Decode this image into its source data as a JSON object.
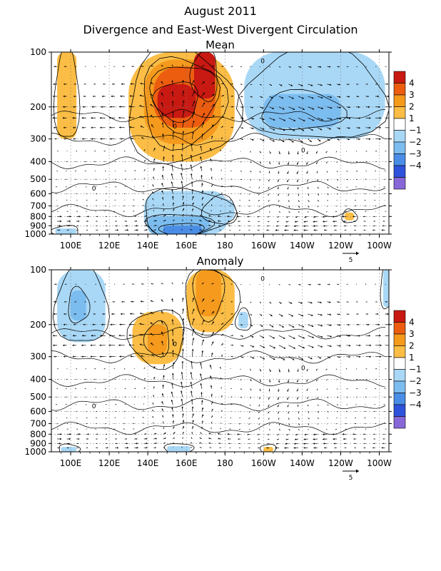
{
  "title": "August 2011",
  "subtitle": "Divergence and East-West Divergent Circulation",
  "colors": {
    "pos4": "#c81a12",
    "pos3": "#ec5d10",
    "pos2": "#f59a1d",
    "pos1": "#fbbd45",
    "neg1": "#a9d8f6",
    "neg2": "#7cbdf0",
    "neg3": "#4a8de6",
    "neg4": "#2f52dc",
    "neg5": "#8868d8",
    "contour": "#000000"
  },
  "colorbar": {
    "labels": [
      "4",
      "3",
      "2",
      "1",
      "−1",
      "−2",
      "−3",
      "−4"
    ]
  },
  "vector_reference": {
    "label": "5",
    "magnitude": 5
  },
  "chart_data": [
    {
      "type": "heatmap",
      "panel_title": "Mean",
      "x_ticks": [
        "100E",
        "120E",
        "140E",
        "160E",
        "180",
        "160W",
        "140W",
        "120W",
        "100W"
      ],
      "x_tick_lon": [
        100,
        120,
        140,
        160,
        180,
        200,
        220,
        240,
        260
      ],
      "xlim_lon": [
        90,
        265
      ],
      "y_ticks": [
        "100",
        "200",
        "300",
        "400",
        "500",
        "600",
        "700",
        "800",
        "900",
        "1000"
      ],
      "y_tick_values": [
        100,
        200,
        300,
        400,
        500,
        600,
        700,
        800,
        900,
        1000
      ],
      "ylim_hPa": [
        1000,
        100
      ],
      "y_scale": "log",
      "contour_zero_label": "0",
      "grid": "dotted",
      "shaded_regions": [
        {
          "level": 1,
          "lon": [
            93,
            103
          ],
          "p": [
            100,
            300
          ]
        },
        {
          "level": 1,
          "lon": [
            130,
            185
          ],
          "p": [
            100,
            400
          ]
        },
        {
          "level": 2,
          "lon": [
            138,
            178
          ],
          "p": [
            110,
            320
          ]
        },
        {
          "level": 3,
          "lon": [
            143,
            175
          ],
          "p": [
            120,
            260
          ]
        },
        {
          "level": 4,
          "lon": [
            145,
            165
          ],
          "p": [
            150,
            230
          ]
        },
        {
          "level": 4,
          "lon": [
            164,
            175
          ],
          "p": [
            100,
            180
          ]
        },
        {
          "level": -1,
          "lon": [
            190,
            263
          ],
          "p": [
            100,
            300
          ]
        },
        {
          "level": -2,
          "lon": [
            200,
            240
          ],
          "p": [
            170,
            260
          ]
        },
        {
          "level": -1,
          "lon": [
            138,
            182
          ],
          "p": [
            580,
            1000
          ]
        },
        {
          "level": -2,
          "lon": [
            140,
            172
          ],
          "p": [
            800,
            1000
          ]
        },
        {
          "level": -3,
          "lon": [
            148,
            168
          ],
          "p": [
            900,
            1000
          ]
        },
        {
          "level": -1,
          "lon": [
            92,
            103
          ],
          "p": [
            930,
            1000
          ]
        },
        {
          "level": -1,
          "lon": [
            170,
            185
          ],
          "p": [
            640,
            860
          ]
        },
        {
          "level": 1,
          "lon": [
            242,
            247
          ],
          "p": [
            760,
            840
          ]
        }
      ],
      "vector_field": {
        "updraft_center_lon": 158,
        "subsidence_center_lon": 215,
        "upper_outflow_p": [
          150,
          300
        ]
      }
    },
    {
      "type": "heatmap",
      "panel_title": "Anomaly",
      "x_ticks": [
        "100E",
        "120E",
        "140E",
        "160E",
        "180",
        "160W",
        "140W",
        "120W",
        "100W"
      ],
      "x_tick_lon": [
        100,
        120,
        140,
        160,
        180,
        200,
        220,
        240,
        260
      ],
      "xlim_lon": [
        90,
        265
      ],
      "y_ticks": [
        "100",
        "200",
        "300",
        "400",
        "500",
        "600",
        "700",
        "800",
        "900",
        "1000"
      ],
      "y_tick_values": [
        100,
        200,
        300,
        400,
        500,
        600,
        700,
        800,
        900,
        1000
      ],
      "ylim_hPa": [
        1000,
        100
      ],
      "y_scale": "log",
      "contour_zero_label": "0",
      "grid": "dotted",
      "shaded_regions": [
        {
          "level": -1,
          "lon": [
            93,
            118
          ],
          "p": [
            100,
            250
          ]
        },
        {
          "level": -2,
          "lon": [
            100,
            108
          ],
          "p": [
            130,
            190
          ]
        },
        {
          "level": 1,
          "lon": [
            160,
            185
          ],
          "p": [
            100,
            220
          ]
        },
        {
          "level": 2,
          "lon": [
            165,
            178
          ],
          "p": [
            100,
            180
          ]
        },
        {
          "level": 1,
          "lon": [
            132,
            158
          ],
          "p": [
            170,
            330
          ]
        },
        {
          "level": 2,
          "lon": [
            140,
            150
          ],
          "p": [
            200,
            290
          ]
        },
        {
          "level": -1,
          "lon": [
            187,
            192
          ],
          "p": [
            170,
            210
          ]
        },
        {
          "level": -1,
          "lon": [
            262,
            266
          ],
          "p": [
            100,
            160
          ]
        },
        {
          "level": -1,
          "lon": [
            95,
            103
          ],
          "p": [
            940,
            1000
          ]
        },
        {
          "level": -1,
          "lon": [
            150,
            162
          ],
          "p": [
            930,
            1000
          ]
        },
        {
          "level": 1,
          "lon": [
            200,
            205
          ],
          "p": [
            940,
            1000
          ]
        }
      ],
      "vector_field": {
        "updraft_center_lon": 160,
        "subsidence_center_lon": 210,
        "upper_outflow_p": [
          200,
          300
        ]
      }
    }
  ]
}
